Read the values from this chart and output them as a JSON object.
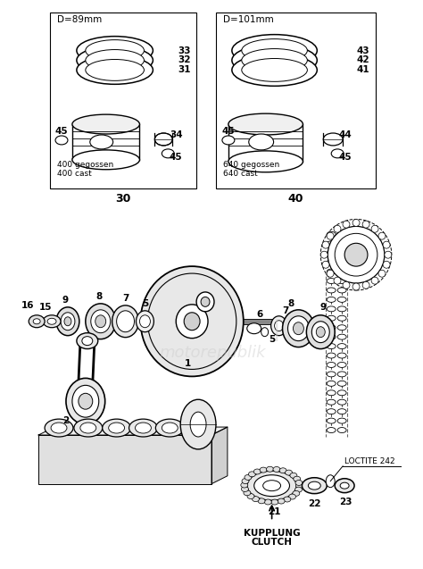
{
  "bg_color": "#ffffff",
  "box1_label": "D=89mm",
  "box2_label": "D=101mm",
  "box1_text1": "400 gegossen",
  "box1_text2": "400 cast",
  "box2_text1": "640 gegossen",
  "box2_text2": "640 cast",
  "label_30": "30",
  "label_40": "40",
  "watermark_color": "#cccccc",
  "loctite_text": "LOCTITE 242",
  "kupplung_text": "KUPPLUNG",
  "clutch_text": "CLUTCH"
}
